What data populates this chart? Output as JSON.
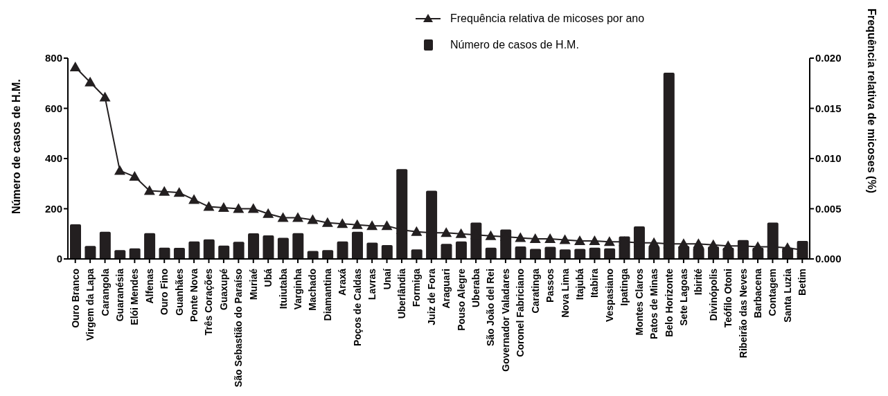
{
  "chart_data": {
    "type": "bar",
    "ylabel": "Número de casos de H.M.",
    "y2label": "Frequência relativa de micoses (%)",
    "categories": [
      "Ouro Branco",
      "Virgem da Lapa",
      "Carangola",
      "Guaranésia",
      "Elói Mendes",
      "Alfenas",
      "Ouro Fino",
      "Guanhães",
      "Ponte Nova",
      "Três Corações",
      "Guaxupé",
      "São Sebastião do Paraíso",
      "Muriaé",
      "Ubá",
      "Ituiutaba",
      "Varginha",
      "Machado",
      "Diamantina",
      "Araxá",
      "Poços de Caldas",
      "Lavras",
      "Unaí",
      "Uberlândia",
      "Formiga",
      "Juiz de Fora",
      "Araguari",
      "Pouso Alegre",
      "Uberaba",
      "São João del Rei",
      "Governador Valadares",
      "Coronel Fabriciano",
      "Caratinga",
      "Passos",
      "Nova Lima",
      "Itajubá",
      "Itabira",
      "Vespasiano",
      "Ipatinga",
      "Montes Claros",
      "Patos de Minas",
      "Belo Horizonte",
      "Sete Lagoas",
      "Ibirité",
      "Divinópolis",
      "Teófilo Otoni",
      "Ribeirão das Neves",
      "Barbacena",
      "Contagem",
      "Santa Luzia",
      "Betim"
    ],
    "series": [
      {
        "name": "Número de casos de H.M.",
        "color": "#231f20",
        "values": [
          138,
          52,
          108,
          35,
          42,
          103,
          45,
          44,
          70,
          78,
          53,
          68,
          102,
          94,
          84,
          103,
          32,
          35,
          70,
          108,
          65,
          55,
          358,
          38,
          272,
          60,
          70,
          145,
          45,
          117,
          50,
          40,
          48,
          38,
          40,
          45,
          42,
          90,
          130,
          50,
          742,
          52,
          45,
          50,
          45,
          75,
          45,
          145,
          45,
          72
        ]
      },
      {
        "name": "Frequência relativa de micoses por ano",
        "type": "line",
        "axis": "y2",
        "color": "#231f20",
        "marker": "triangle",
        "values": [
          0.0191,
          0.0176,
          0.0161,
          0.0088,
          0.0082,
          0.0068,
          0.0067,
          0.0066,
          0.0059,
          0.0052,
          0.0051,
          0.005,
          0.005,
          0.0045,
          0.0041,
          0.0041,
          0.0039,
          0.0036,
          0.0035,
          0.0034,
          0.0033,
          0.0033,
          0.0029,
          0.0027,
          0.0026,
          0.0026,
          0.0025,
          0.0024,
          0.0023,
          0.0022,
          0.0021,
          0.002,
          0.002,
          0.0019,
          0.0018,
          0.0018,
          0.0017,
          0.0017,
          0.0016,
          0.0016,
          0.0015,
          0.0015,
          0.0015,
          0.0014,
          0.0013,
          0.0013,
          0.0012,
          0.0012,
          0.0011,
          0.0009
        ]
      }
    ],
    "ylim": [
      0,
      800
    ],
    "yticks": [
      0,
      200,
      400,
      600,
      800
    ],
    "y2lim": [
      0,
      0.02
    ],
    "y2ticks": [
      {
        "value": 0,
        "label": "0.000"
      },
      {
        "value": 0.005,
        "label": "0.005"
      },
      {
        "value": 0.01,
        "label": "0.010"
      },
      {
        "value": 0.015,
        "label": "0.015"
      },
      {
        "value": 0.02,
        "label": "0.020"
      }
    ],
    "legend": "top",
    "grid": false
  }
}
